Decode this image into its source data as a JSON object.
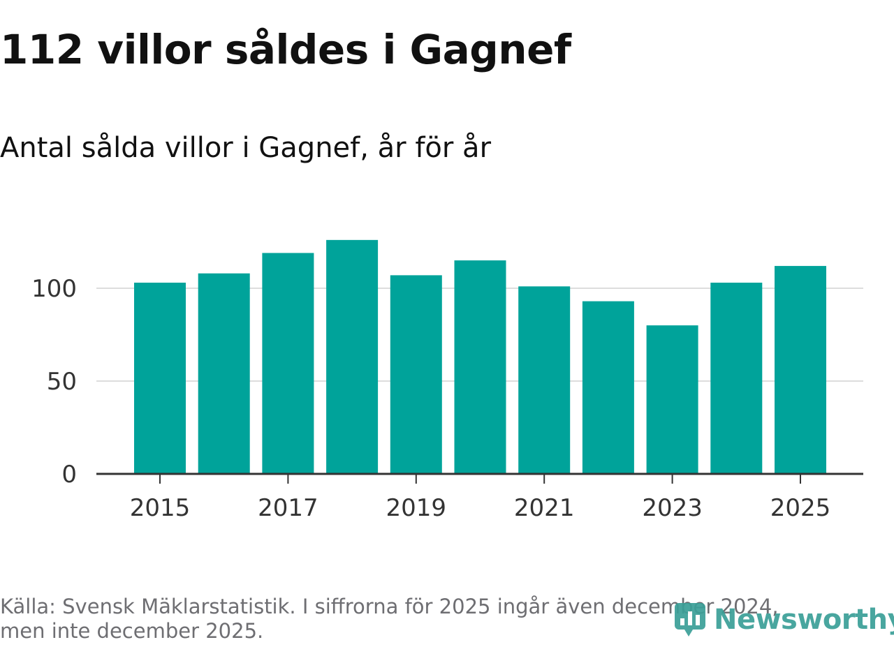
{
  "header": {
    "title": "112 villor såldes i Gagnef",
    "subtitle": "Antal sålda villor i Gagnef, år för år"
  },
  "footer": {
    "source_line1": "Källa: Svensk Mäklarstatistik. I siffrorna för 2025 ingår även december 2024,",
    "source_line2": "men inte december 2025.",
    "logo_text": "Newsworthy",
    "logo_icon": "chart-bubble-icon"
  },
  "colors": {
    "bar": "#00a39a",
    "grid": "#dddddd",
    "axis": "#333333",
    "logo": "#3a9f97"
  },
  "chart_data": {
    "type": "bar",
    "title": "Antal sålda villor i Gagnef, år för år",
    "xlabel": "",
    "ylabel": "",
    "categories": [
      "2015",
      "2016",
      "2017",
      "2018",
      "2019",
      "2020",
      "2021",
      "2022",
      "2023",
      "2024",
      "2025"
    ],
    "values": [
      103,
      108,
      119,
      126,
      107,
      115,
      101,
      93,
      80,
      103,
      112
    ],
    "x_tick_labels": [
      "2015",
      "2017",
      "2019",
      "2021",
      "2023",
      "2025"
    ],
    "y_ticks": [
      0,
      50,
      100
    ],
    "ylim": [
      0,
      130
    ],
    "grid": true
  }
}
